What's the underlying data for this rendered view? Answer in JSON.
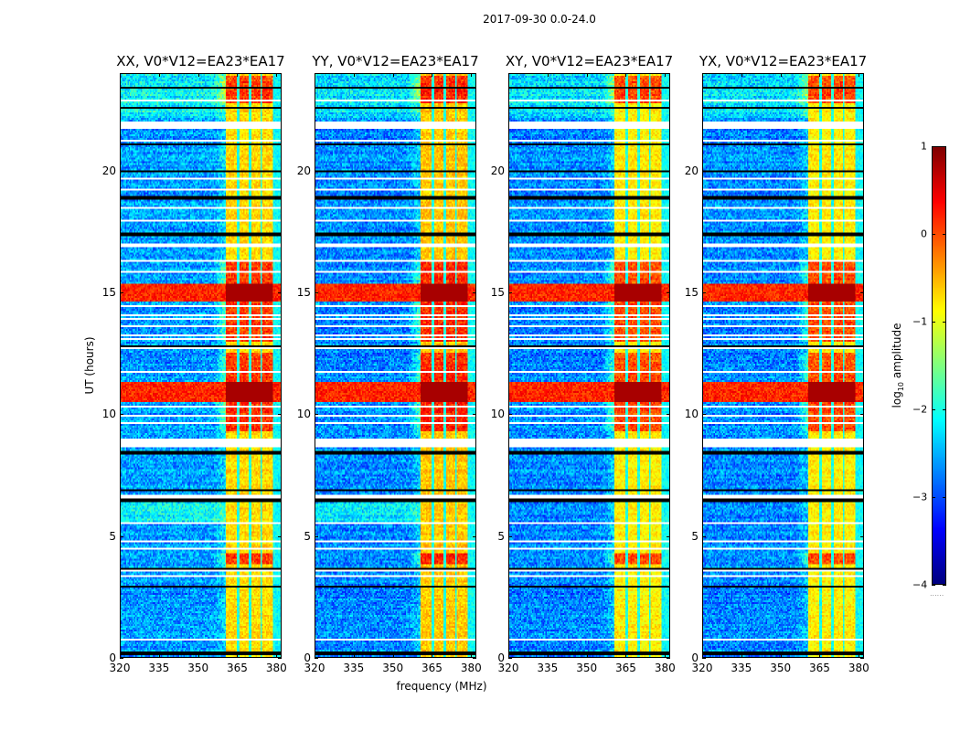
{
  "figure": {
    "suptitle": "2017-09-30 0.0-24.0",
    "xlabel": "frequency (MHz)",
    "ylabel": "UT (hours)",
    "colorbar_label_prefix": "log",
    "colorbar_label_sub": "10",
    "colorbar_label_suffix": " amplitude",
    "colorbar_dots": "......"
  },
  "chart_data": {
    "type": "heatmap",
    "title": "2017-09-30 0.0-24.0",
    "xlabel": "frequency (MHz)",
    "ylabel": "UT (hours)",
    "xlim": [
      320,
      382
    ],
    "ylim": [
      0,
      24
    ],
    "xticks": [
      320,
      335,
      350,
      365,
      380
    ],
    "yticks": [
      0,
      5,
      10,
      15,
      20
    ],
    "colormap": "jet",
    "colorbar": {
      "label": "log10 amplitude",
      "range": [
        -4,
        1
      ],
      "ticks": [
        1,
        0,
        -1,
        -2,
        -3,
        -4
      ],
      "tick_labels": [
        "1",
        "0",
        "−1",
        "−2",
        "−3",
        "−4"
      ]
    },
    "panels": [
      {
        "title": "XX, V0*V12=EA23*EA17",
        "polarization": "XX",
        "baseline": "V0*V12=EA23*EA17",
        "background_level": -2.6,
        "band_level": -0.7
      },
      {
        "title": "YY, V0*V12=EA23*EA17",
        "polarization": "YY",
        "baseline": "V0*V12=EA23*EA17",
        "background_level": -2.7,
        "band_level": -0.6
      },
      {
        "title": "XY, V0*V12=EA23*EA17",
        "polarization": "XY",
        "baseline": "V0*V12=EA23*EA17",
        "background_level": -2.7,
        "band_level": -0.8
      },
      {
        "title": "YX, V0*V12=EA23*EA17",
        "polarization": "YX",
        "baseline": "V0*V12=EA23*EA17",
        "background_level": -2.7,
        "band_level": -0.8
      }
    ],
    "features": {
      "bright_band_MHz": [
        361,
        379
      ],
      "band_gaps_MHz": [
        365.5,
        370,
        374.5
      ],
      "rfi_bursts_UT": [
        [
          10.5,
          11.3
        ],
        [
          14.6,
          15.4
        ]
      ],
      "bright_periods_UT": [
        [
          3.8,
          4.3
        ],
        [
          9.3,
          12.5
        ],
        [
          13.0,
          16.3
        ],
        [
          22.8,
          23.9
        ]
      ],
      "flagged_rows_UT": [
        [
          0.65,
          0.72
        ],
        [
          3.3,
          3.38
        ],
        [
          3.52,
          3.62
        ],
        [
          3.72,
          3.78
        ],
        [
          4.45,
          4.52
        ],
        [
          4.75,
          4.82
        ],
        [
          5.5,
          5.56
        ],
        [
          6.5,
          6.68
        ],
        [
          8.65,
          8.98
        ],
        [
          9.2,
          9.25
        ],
        [
          9.6,
          9.7
        ],
        [
          9.88,
          9.95
        ],
        [
          10.3,
          10.36
        ],
        [
          10.85,
          10.9
        ],
        [
          11.7,
          11.76
        ],
        [
          12.2,
          12.25
        ],
        [
          12.5,
          12.55
        ],
        [
          12.7,
          12.75
        ],
        [
          13.05,
          13.1
        ],
        [
          13.2,
          13.26
        ],
        [
          13.6,
          13.64
        ],
        [
          13.85,
          13.92
        ],
        [
          14.03,
          14.07
        ],
        [
          14.4,
          14.46
        ],
        [
          15.85,
          15.9
        ],
        [
          16.1,
          16.14
        ],
        [
          16.3,
          16.36
        ],
        [
          16.9,
          17.05
        ],
        [
          17.3,
          17.35
        ],
        [
          17.6,
          17.64
        ],
        [
          17.95,
          17.99
        ],
        [
          18.2,
          18.25
        ],
        [
          18.45,
          18.5
        ],
        [
          19.2,
          19.25
        ],
        [
          19.65,
          19.7
        ],
        [
          21.25,
          21.3
        ],
        [
          21.75,
          22.05
        ],
        [
          22.4,
          22.45
        ],
        [
          22.85,
          22.92
        ]
      ],
      "black_rows_UT": [
        0.15,
        2.9,
        3.6,
        6.45,
        6.85,
        8.4,
        8.85,
        12.8,
        14.05,
        17.4,
        18.9,
        20.0,
        21.1,
        22.6,
        23.45
      ]
    }
  }
}
